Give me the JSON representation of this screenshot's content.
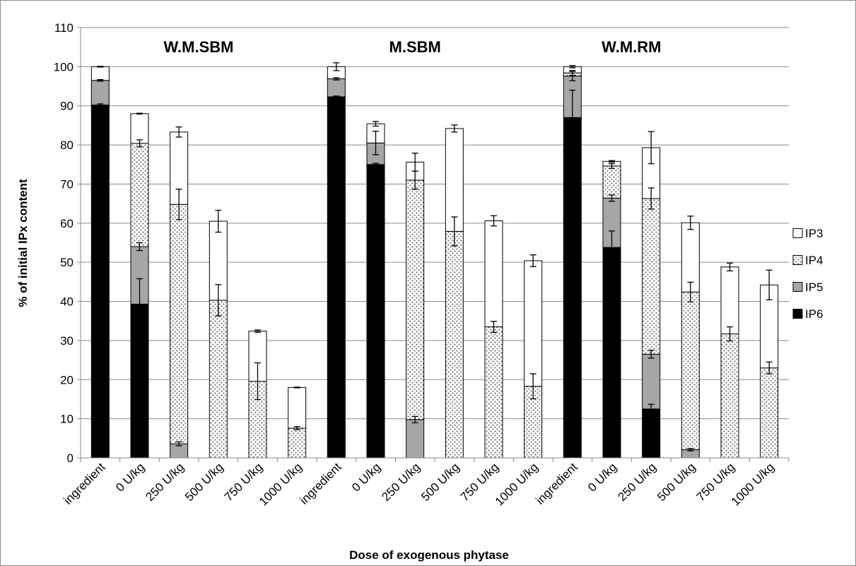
{
  "chart_data": {
    "type": "bar",
    "stacked": true,
    "xlabel": "Dose of exogenous phytase",
    "ylabel": "% of initial IPx content",
    "ylim": [
      0,
      110
    ],
    "yticks": [
      0,
      10,
      20,
      30,
      40,
      50,
      60,
      70,
      80,
      90,
      100,
      110
    ],
    "grid": true,
    "legend_position": "right",
    "groups": [
      {
        "name": "W.M.SBM",
        "start": 0,
        "end": 5
      },
      {
        "name": "M.SBM",
        "start": 6,
        "end": 10
      },
      {
        "name": "W.M.RM",
        "start": 11,
        "end": 16
      }
    ],
    "categories": [
      "ingredient",
      "0 U/kg",
      "250 U/kg",
      "500 U/kg",
      "750 U/kg",
      "1000 U/kg",
      "ingredient",
      "0 U/kg",
      "250 U/kg",
      "500 U/kg",
      "750 U/kg",
      "1000 U/kg",
      "ingredient",
      "0 U/kg",
      "250 U/kg",
      "500 U/kg",
      "750 U/kg",
      "1000 U/kg"
    ],
    "series": [
      {
        "name": "IP6",
        "fill": "#000000",
        "values": [
          90.2,
          39.3,
          0,
          0,
          0,
          0,
          92.3,
          75.0,
          0,
          0,
          0,
          0,
          87.0,
          53.8,
          12.5,
          0,
          0,
          0
        ]
      },
      {
        "name": "IP5",
        "fill": "#a6a6a6",
        "values": [
          6.3,
          14.7,
          3.6,
          0,
          0,
          0,
          4.6,
          5.5,
          9.8,
          0,
          0,
          0,
          10.6,
          12.6,
          14.0,
          2.1,
          0,
          0
        ]
      },
      {
        "name": "IP4",
        "fill": "pattern",
        "values": [
          0,
          26.4,
          61.2,
          40.3,
          19.6,
          7.6,
          0,
          0,
          61.2,
          57.9,
          33.5,
          18.3,
          0.8,
          8.2,
          39.8,
          40.3,
          31.7,
          23.0
        ]
      },
      {
        "name": "IP3",
        "fill": "#ffffff",
        "values": [
          3.5,
          7.6,
          18.5,
          20.2,
          12.8,
          10.4,
          3.1,
          4.9,
          4.6,
          26.3,
          27.1,
          32.1,
          1.6,
          1.2,
          13.0,
          17.7,
          17.1,
          21.2
        ]
      }
    ],
    "error_bars": [
      {
        "cat": 0,
        "y": 90.2,
        "e": 0.3
      },
      {
        "cat": 0,
        "y": 96.5,
        "e": 0.2
      },
      {
        "cat": 0,
        "y": 100.0,
        "e": 0.1
      },
      {
        "cat": 1,
        "y": 39.3,
        "e": 6.5
      },
      {
        "cat": 1,
        "y": 54.0,
        "e": 1.0
      },
      {
        "cat": 1,
        "y": 80.4,
        "e": 0.9
      },
      {
        "cat": 1,
        "y": 88.0,
        "e": 0.1
      },
      {
        "cat": 2,
        "y": 3.6,
        "e": 0.5
      },
      {
        "cat": 2,
        "y": 64.8,
        "e": 3.9
      },
      {
        "cat": 2,
        "y": 83.3,
        "e": 1.3
      },
      {
        "cat": 3,
        "y": 40.3,
        "e": 4.0
      },
      {
        "cat": 3,
        "y": 60.5,
        "e": 2.8
      },
      {
        "cat": 4,
        "y": 19.6,
        "e": 4.7
      },
      {
        "cat": 4,
        "y": 32.4,
        "e": 0.3
      },
      {
        "cat": 5,
        "y": 7.6,
        "e": 0.4
      },
      {
        "cat": 5,
        "y": 18.0,
        "e": 0.1
      },
      {
        "cat": 6,
        "y": 92.3,
        "e": 0.2
      },
      {
        "cat": 6,
        "y": 96.9,
        "e": 0.3
      },
      {
        "cat": 6,
        "y": 100.0,
        "e": 1.0
      },
      {
        "cat": 7,
        "y": 75.0,
        "e": 0.3
      },
      {
        "cat": 7,
        "y": 80.5,
        "e": 3.0
      },
      {
        "cat": 7,
        "y": 85.4,
        "e": 0.6
      },
      {
        "cat": 8,
        "y": 9.8,
        "e": 0.8
      },
      {
        "cat": 8,
        "y": 71.0,
        "e": 2.3
      },
      {
        "cat": 8,
        "y": 75.6,
        "e": 2.3
      },
      {
        "cat": 9,
        "y": 57.9,
        "e": 3.7
      },
      {
        "cat": 9,
        "y": 84.2,
        "e": 0.9
      },
      {
        "cat": 10,
        "y": 33.5,
        "e": 1.4
      },
      {
        "cat": 10,
        "y": 60.6,
        "e": 1.3
      },
      {
        "cat": 11,
        "y": 18.3,
        "e": 3.2
      },
      {
        "cat": 11,
        "y": 50.4,
        "e": 1.5
      },
      {
        "cat": 12,
        "y": 87.0,
        "e": 7.0
      },
      {
        "cat": 12,
        "y": 97.6,
        "e": 1.2
      },
      {
        "cat": 12,
        "y": 98.4,
        "e": 0.6
      },
      {
        "cat": 12,
        "y": 100.0,
        "e": 0.3
      },
      {
        "cat": 13,
        "y": 53.8,
        "e": 4.2
      },
      {
        "cat": 13,
        "y": 66.4,
        "e": 0.8
      },
      {
        "cat": 13,
        "y": 74.6,
        "e": 0.6
      },
      {
        "cat": 13,
        "y": 75.8,
        "e": 0.2
      },
      {
        "cat": 14,
        "y": 12.5,
        "e": 1.2
      },
      {
        "cat": 14,
        "y": 26.5,
        "e": 1.0
      },
      {
        "cat": 14,
        "y": 66.3,
        "e": 2.7
      },
      {
        "cat": 14,
        "y": 79.3,
        "e": 4.1
      },
      {
        "cat": 15,
        "y": 2.1,
        "e": 0.3
      },
      {
        "cat": 15,
        "y": 42.4,
        "e": 2.5
      },
      {
        "cat": 15,
        "y": 60.1,
        "e": 1.7
      },
      {
        "cat": 16,
        "y": 31.7,
        "e": 1.8
      },
      {
        "cat": 16,
        "y": 48.8,
        "e": 1.0
      },
      {
        "cat": 17,
        "y": 23.0,
        "e": 1.5
      },
      {
        "cat": 17,
        "y": 44.2,
        "e": 3.8
      }
    ]
  }
}
